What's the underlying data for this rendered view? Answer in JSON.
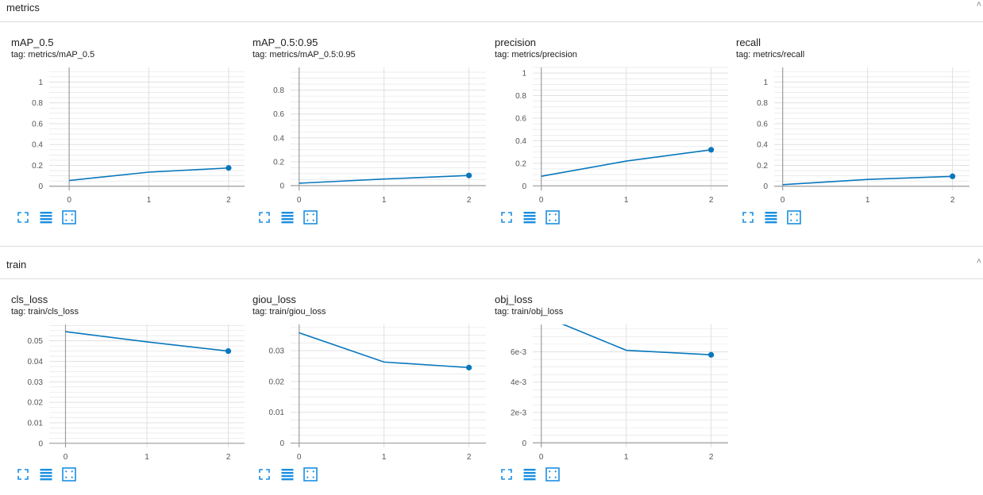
{
  "groups": [
    {
      "title": "metrics"
    },
    {
      "title": "train"
    }
  ],
  "colors": {
    "line": "#0877bd",
    "grid": "#e0e0e0",
    "axis": "#9e9e9e",
    "icon": "#1a8ee1"
  },
  "chart_data": [
    {
      "type": "line",
      "title": "mAP_0.5",
      "tag": "tag: metrics/mAP_0.5",
      "x": [
        0,
        1,
        2
      ],
      "values": [
        0.055,
        0.135,
        0.175
      ],
      "xlim": [
        -0.25,
        2.2
      ],
      "ylim": [
        -0.04,
        1.14
      ],
      "yticks": [
        0,
        0.2,
        0.4,
        0.6,
        0.8,
        1
      ],
      "yticklabels": [
        "0",
        "0.2",
        "0.4",
        "0.6",
        "0.8",
        "1"
      ],
      "xticks": [
        0,
        1,
        2
      ],
      "xticklabels": [
        "0",
        "1",
        "2"
      ],
      "grid": true
    },
    {
      "type": "line",
      "title": "mAP_0.5:0.95",
      "tag": "tag: metrics/mAP_0.5:0.95",
      "x": [
        0,
        1,
        2
      ],
      "values": [
        0.02,
        0.055,
        0.085
      ],
      "xlim": [
        -0.1,
        2.2
      ],
      "ylim": [
        -0.04,
        0.99
      ],
      "yticks": [
        0,
        0.2,
        0.4,
        0.6,
        0.8
      ],
      "yticklabels": [
        "0",
        "0.2",
        "0.4",
        "0.6",
        "0.8"
      ],
      "xticks": [
        0,
        1,
        2
      ],
      "xticklabels": [
        "0",
        "1",
        "2"
      ],
      "grid": true
    },
    {
      "type": "line",
      "title": "precision",
      "tag": "tag: metrics/precision",
      "x": [
        0,
        1,
        2
      ],
      "values": [
        0.085,
        0.22,
        0.32
      ],
      "xlim": [
        -0.1,
        2.2
      ],
      "ylim": [
        -0.04,
        1.05
      ],
      "yticks": [
        0,
        0.2,
        0.4,
        0.6,
        0.8,
        1
      ],
      "yticklabels": [
        "0",
        "0.2",
        "0.4",
        "0.6",
        "0.8",
        "1"
      ],
      "xticks": [
        0,
        1,
        2
      ],
      "xticklabels": [
        "0",
        "1",
        "2"
      ],
      "grid": true
    },
    {
      "type": "line",
      "title": "recall",
      "tag": "tag: metrics/recall",
      "x": [
        0,
        1,
        2
      ],
      "values": [
        0.015,
        0.065,
        0.095
      ],
      "xlim": [
        -0.1,
        2.2
      ],
      "ylim": [
        -0.04,
        1.14
      ],
      "yticks": [
        0,
        0.2,
        0.4,
        0.6,
        0.8,
        1
      ],
      "yticklabels": [
        "0",
        "0.2",
        "0.4",
        "0.6",
        "0.8",
        "1"
      ],
      "xticks": [
        0,
        1,
        2
      ],
      "xticklabels": [
        "0",
        "1",
        "2"
      ],
      "grid": true
    },
    {
      "type": "line",
      "title": "cls_loss",
      "tag": "tag: train/cls_loss",
      "x": [
        0,
        1,
        2
      ],
      "values": [
        0.0545,
        0.0495,
        0.045
      ],
      "xlim": [
        -0.2,
        2.2
      ],
      "ylim": [
        -0.002,
        0.058
      ],
      "yticks": [
        0,
        0.01,
        0.02,
        0.03,
        0.04,
        0.05
      ],
      "yticklabels": [
        "0",
        "0.01",
        "0.02",
        "0.03",
        "0.04",
        "0.05"
      ],
      "xticks": [
        0,
        1,
        2
      ],
      "xticklabels": [
        "0",
        "1",
        "2"
      ],
      "grid": true
    },
    {
      "type": "line",
      "title": "giou_loss",
      "tag": "tag: train/giou_loss",
      "x": [
        0,
        1,
        2
      ],
      "values": [
        0.0358,
        0.0263,
        0.0245
      ],
      "xlim": [
        -0.1,
        2.2
      ],
      "ylim": [
        -0.0014,
        0.0385
      ],
      "yticks": [
        0,
        0.01,
        0.02,
        0.03
      ],
      "yticklabels": [
        "0",
        "0.01",
        "0.02",
        "0.03"
      ],
      "xticks": [
        0,
        1,
        2
      ],
      "xticklabels": [
        "0",
        "1",
        "2"
      ],
      "grid": true
    },
    {
      "type": "line",
      "title": "obj_loss",
      "tag": "tag: train/obj_loss",
      "x": [
        0,
        1,
        2
      ],
      "values": [
        0.0084,
        0.0061,
        0.0058
      ],
      "xlim": [
        -0.1,
        2.2
      ],
      "ylim": [
        -0.0003,
        0.0078
      ],
      "yticks": [
        0,
        0.002,
        0.004,
        0.006
      ],
      "yticklabels": [
        "0",
        "2e-3",
        "4e-3",
        "6e-3"
      ],
      "xticks": [
        0,
        1,
        2
      ],
      "xticklabels": [
        "0",
        "1",
        "2"
      ],
      "grid": true
    }
  ],
  "card_actions": [
    "fullscreen-icon",
    "data-table-icon",
    "fit-domain-icon"
  ]
}
